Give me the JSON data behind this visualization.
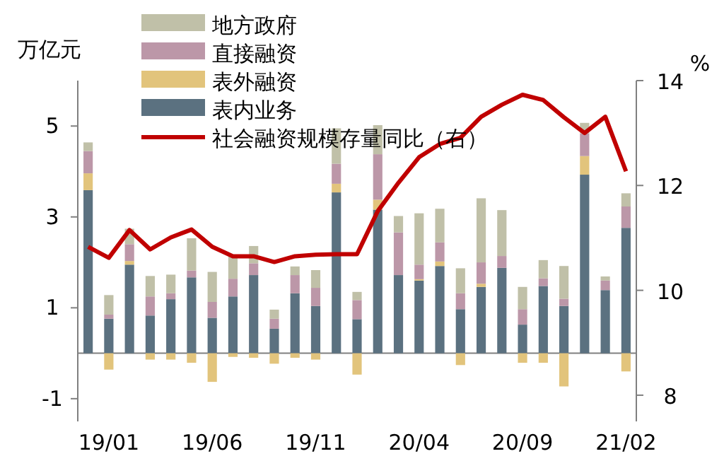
{
  "chart_data": {
    "type": "bar",
    "stacked": true,
    "ylabel": "万亿元",
    "y2label": "%",
    "legend": "top left",
    "categories": [
      null,
      "19/01",
      null,
      null,
      null,
      null,
      "19/06",
      null,
      null,
      null,
      null,
      "19/11",
      null,
      null,
      null,
      null,
      "20/04",
      null,
      null,
      null,
      null,
      "20/09",
      null,
      null,
      null,
      null,
      "21/02"
    ],
    "ylim": [
      -1.5,
      6
    ],
    "yticks": [
      -1,
      1,
      3,
      5
    ],
    "y2lim": [
      7.5,
      14
    ],
    "y2ticks": [
      8,
      10,
      12,
      14
    ],
    "series": [
      {
        "name": "表内业务",
        "color": "#5b7180",
        "values": [
          3.59,
          0.76,
          1.95,
          0.83,
          1.19,
          1.67,
          0.78,
          1.25,
          1.72,
          0.54,
          1.32,
          1.04,
          3.54,
          0.75,
          3.16,
          1.72,
          1.6,
          1.92,
          0.97,
          1.46,
          1.88,
          0.63,
          1.48,
          1.04,
          3.93,
          1.39,
          2.76
        ]
      },
      {
        "name": "表外融资",
        "color": "#e2c47c",
        "values": [
          0.37,
          -0.36,
          0.08,
          -0.14,
          -0.14,
          -0.21,
          -0.63,
          -0.08,
          -0.1,
          -0.23,
          -0.1,
          -0.14,
          0.19,
          -0.47,
          0.22,
          0,
          0.03,
          0.1,
          -0.26,
          0.07,
          0,
          -0.21,
          -0.21,
          -0.73,
          0.41,
          0,
          -0.4
        ]
      },
      {
        "name": "直接融资",
        "color": "#bc97a8",
        "values": [
          0.49,
          0.09,
          0.37,
          0.42,
          0.13,
          0.15,
          0.35,
          0.39,
          0.26,
          0.22,
          0.4,
          0.4,
          0.44,
          0.42,
          1.0,
          0.94,
          0.32,
          0.42,
          0.35,
          0.47,
          0.26,
          0.34,
          0.17,
          0.16,
          0.5,
          0.21,
          0.47
        ]
      },
      {
        "name": "地方政府",
        "color": "#c0c0a8",
        "values": [
          0.19,
          0.43,
          0.34,
          0.45,
          0.41,
          0.71,
          0.66,
          0.5,
          0.38,
          0.2,
          0.19,
          0.39,
          0.78,
          0.18,
          0.64,
          0.36,
          1.13,
          0.74,
          0.55,
          1.41,
          1.01,
          0.49,
          0.4,
          0.72,
          0.23,
          0.09,
          0.29
        ]
      },
      {
        "name": "社会融资规模存量同比（右）",
        "type": "line",
        "axis": "y2",
        "color": "#c00000",
        "values": [
          10.83,
          10.62,
          11.15,
          10.78,
          11.01,
          11.16,
          10.83,
          10.65,
          10.65,
          10.54,
          10.65,
          10.68,
          10.69,
          10.69,
          11.51,
          12.05,
          12.54,
          12.79,
          12.91,
          13.31,
          13.54,
          13.73,
          13.63,
          13.3,
          13.0,
          13.31,
          12.27
        ]
      }
    ]
  }
}
